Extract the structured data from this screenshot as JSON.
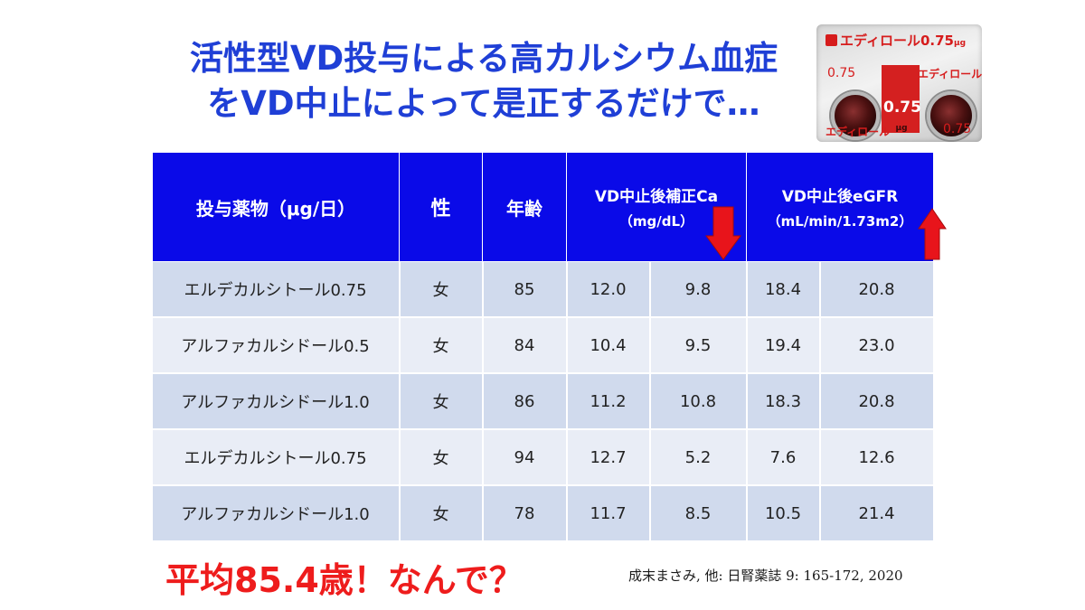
{
  "slide": {
    "title_line1": "活性型VD投与による高カルシウム血症",
    "title_line2": "をVD中止によって是正するだけで…",
    "footer_note": "平均85.4歳！なんで？",
    "citation": "成末まさみ, 他: 日腎薬誌 9: 165-172, 2020"
  },
  "pill_image": {
    "brand": "エディロール",
    "brand_dose": "0.75",
    "brand_unit": "μg",
    "dose_label": "0.75",
    "center_dose": "0.75",
    "center_unit": "μg",
    "sheet_name": "エディロール"
  },
  "table": {
    "headers": {
      "drug": "投与薬物（μg/日）",
      "sex": "性",
      "age": "年齢",
      "ca_main": "VD中止後補正Ca",
      "ca_sub": "（mg/dL）",
      "egfr_main": "VD中止後eGFR",
      "egfr_sub": "（mL/min/1.73m2）"
    },
    "rows": [
      {
        "drug": "エルデカルシトール0.75",
        "sex": "女",
        "age": "85",
        "ca_before": "12.0",
        "ca_after": "9.8",
        "egfr_before": "18.4",
        "egfr_after": "20.8"
      },
      {
        "drug": "アルファカルシドール0.5",
        "sex": "女",
        "age": "84",
        "ca_before": "10.4",
        "ca_after": "9.5",
        "egfr_before": "19.4",
        "egfr_after": "23.0"
      },
      {
        "drug": "アルファカルシドール1.0",
        "sex": "女",
        "age": "86",
        "ca_before": "11.2",
        "ca_after": "10.8",
        "egfr_before": "18.3",
        "egfr_after": "20.8"
      },
      {
        "drug": "エルデカルシトール0.75",
        "sex": "女",
        "age": "94",
        "ca_before": "12.7",
        "ca_after": "5.2",
        "egfr_before": "7.6",
        "egfr_after": "12.6"
      },
      {
        "drug": "アルファカルシドール1.0",
        "sex": "女",
        "age": "78",
        "ca_before": "11.7",
        "ca_after": "8.5",
        "egfr_before": "10.5",
        "egfr_after": "21.4"
      }
    ]
  },
  "colors": {
    "title": "#1f3fd6",
    "header_bg": "#0a0ae8",
    "row_odd": "#d0daed",
    "row_even": "#e9edf6",
    "arrow": "#e8141b",
    "footer": "#ee1c1c"
  },
  "icons": {
    "ca_arrow": "arrow-down-icon",
    "egfr_arrow": "arrow-up-icon"
  }
}
